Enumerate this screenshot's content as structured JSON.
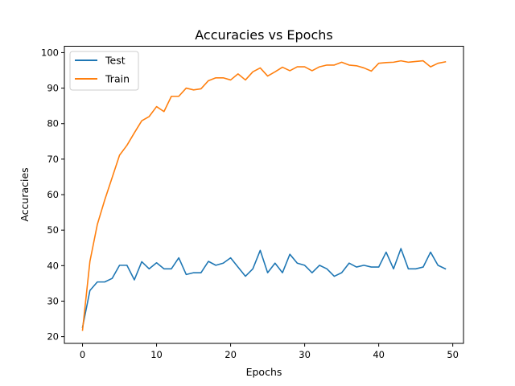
{
  "chart_data": {
    "type": "line",
    "title": "Accuracies vs Epochs",
    "xlabel": "Epochs",
    "ylabel": "Accuracies",
    "xlim": [
      -2.45,
      51.45
    ],
    "ylim": [
      18.1,
      101.8
    ],
    "xticks": [
      0,
      10,
      20,
      30,
      40,
      50
    ],
    "yticks": [
      20,
      30,
      40,
      50,
      60,
      70,
      80,
      90,
      100
    ],
    "grid": false,
    "legend_position": "top-left",
    "x": [
      0,
      1,
      2,
      3,
      4,
      5,
      6,
      7,
      8,
      9,
      10,
      11,
      12,
      13,
      14,
      15,
      16,
      17,
      18,
      19,
      20,
      21,
      22,
      23,
      24,
      25,
      26,
      27,
      28,
      29,
      30,
      31,
      32,
      33,
      34,
      35,
      36,
      37,
      38,
      39,
      40,
      41,
      42,
      43,
      44,
      45,
      46,
      47,
      48,
      49
    ],
    "series": [
      {
        "name": "Test",
        "color": "#1f77b4",
        "values": [
          22.6,
          33.0,
          35.4,
          35.4,
          36.4,
          40.1,
          40.1,
          36.0,
          41.1,
          39.1,
          40.8,
          39.1,
          39.1,
          42.2,
          37.5,
          38.0,
          38.0,
          41.2,
          40.1,
          40.7,
          42.2,
          39.6,
          37.0,
          39.1,
          44.3,
          38.0,
          40.7,
          38.0,
          43.2,
          40.7,
          40.1,
          38.0,
          40.1,
          39.1,
          37.0,
          38.0,
          40.7,
          39.6,
          40.1,
          39.6,
          39.6,
          43.8,
          39.1,
          44.8,
          39.1,
          39.1,
          39.6,
          43.8,
          40.1,
          39.1
        ]
      },
      {
        "name": "Train",
        "color": "#ff7f0e",
        "values": [
          21.8,
          41.2,
          51.6,
          58.5,
          64.8,
          71.1,
          73.9,
          77.4,
          80.8,
          82.0,
          84.8,
          83.4,
          87.7,
          87.7,
          90.0,
          89.5,
          89.8,
          92.1,
          92.9,
          92.9,
          92.3,
          94.0,
          92.3,
          94.6,
          95.7,
          93.4,
          94.6,
          95.9,
          94.9,
          96.0,
          96.0,
          94.9,
          96.0,
          96.5,
          96.5,
          97.3,
          96.5,
          96.3,
          95.7,
          94.8,
          97.0,
          97.2,
          97.3,
          97.7,
          97.3,
          97.5,
          97.7,
          96.0,
          97.0,
          97.4
        ]
      }
    ]
  }
}
